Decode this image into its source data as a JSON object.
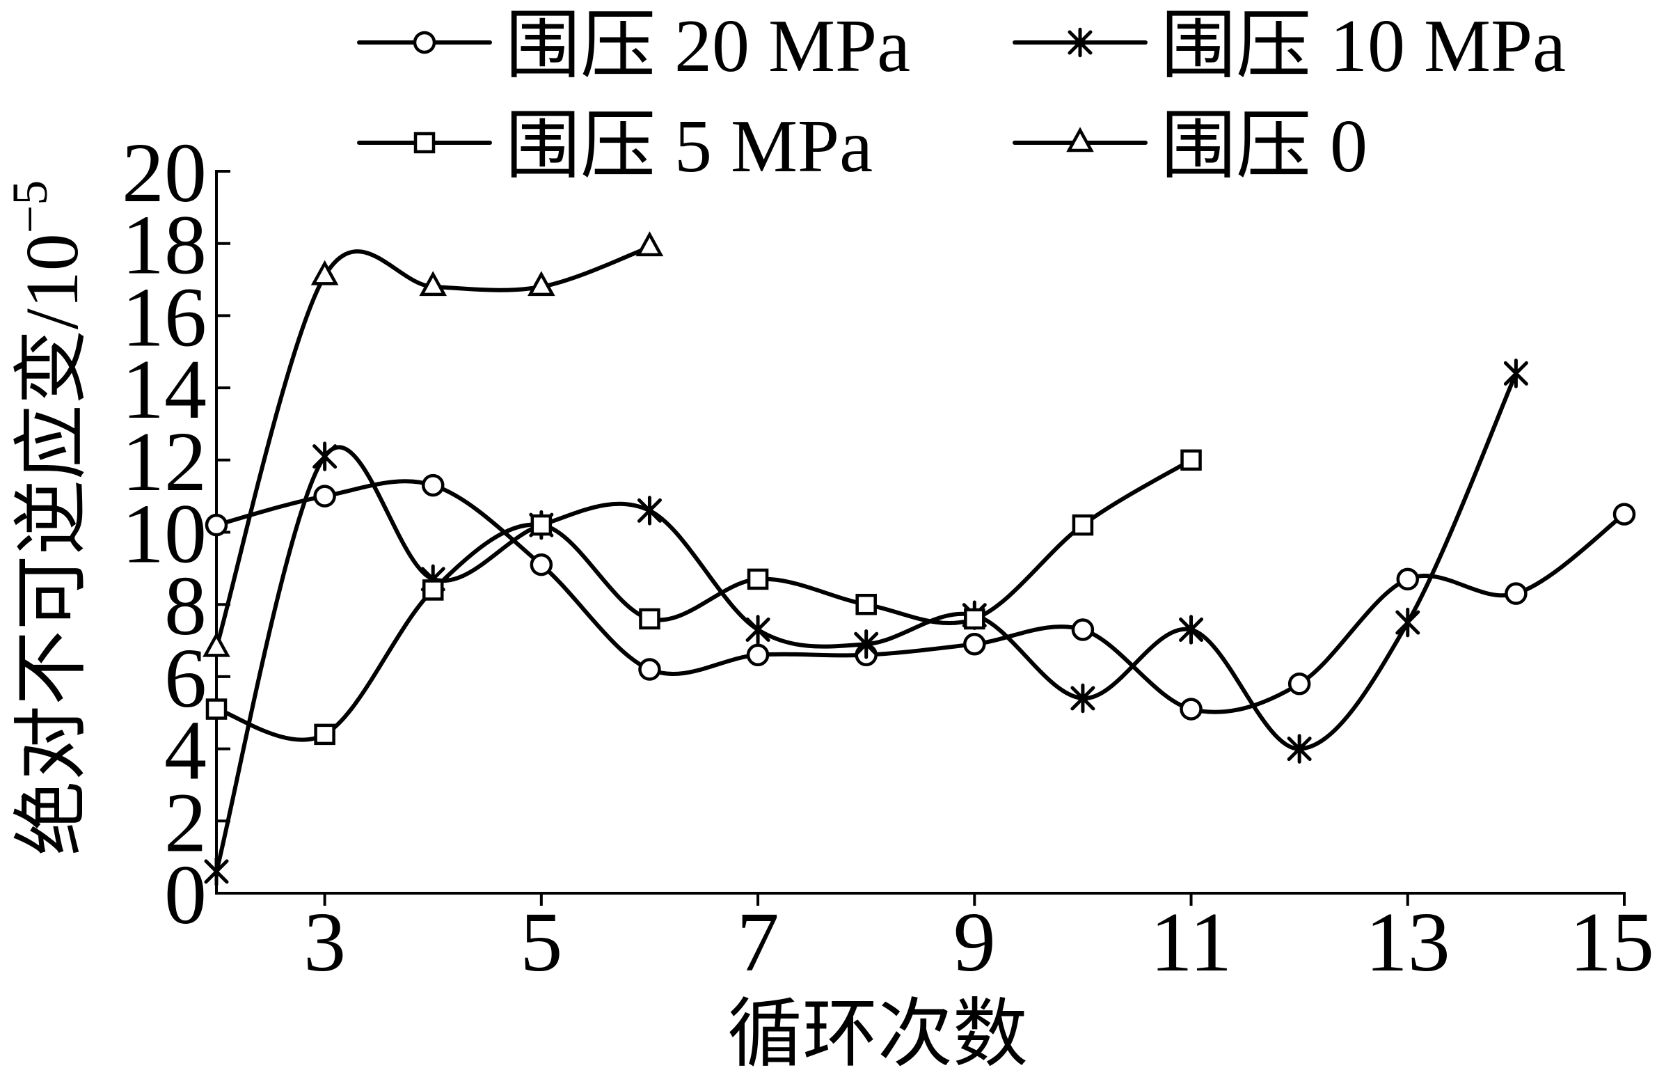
{
  "chart_data": {
    "type": "line",
    "smooth": true,
    "xlabel": "循环次数",
    "ylabel": "绝对不可逆应变/10",
    "ylabel_exponent": "−5",
    "xlim": [
      2,
      15
    ],
    "ylim": [
      0,
      20
    ],
    "xticks": [
      3,
      5,
      7,
      9,
      11,
      13,
      15
    ],
    "yticks": [
      0,
      2,
      4,
      6,
      8,
      10,
      12,
      14,
      16,
      18,
      20
    ],
    "grid": false,
    "legend_placement": "top",
    "line_color": "#000000",
    "marker_fill": "#ffffff",
    "series": [
      {
        "name": "围压 20 MPa",
        "marker": "circle",
        "x": [
          2,
          3,
          4,
          5,
          6,
          7,
          8,
          9,
          10,
          11,
          12,
          13,
          14,
          15
        ],
        "y": [
          10.2,
          11.0,
          11.3,
          9.1,
          6.2,
          6.6,
          6.6,
          6.9,
          7.3,
          5.1,
          5.8,
          8.7,
          8.3,
          10.5
        ]
      },
      {
        "name": "围压 10 MPa",
        "marker": "asterisk",
        "x": [
          2,
          3,
          4,
          5,
          6,
          7,
          8,
          9,
          10,
          11,
          12,
          13,
          14
        ],
        "y": [
          0.6,
          12.1,
          8.7,
          10.2,
          10.6,
          7.3,
          6.9,
          7.7,
          5.4,
          7.3,
          4.0,
          7.5,
          14.4
        ]
      },
      {
        "name": "围压 5 MPa",
        "marker": "square",
        "x": [
          2,
          3,
          4,
          5,
          6,
          7,
          8,
          9,
          10,
          11
        ],
        "y": [
          5.1,
          4.4,
          8.4,
          10.2,
          7.6,
          8.7,
          8.0,
          7.6,
          10.2,
          12.0
        ]
      },
      {
        "name": "围压 0",
        "marker": "triangle",
        "x": [
          2,
          3,
          4,
          5,
          6
        ],
        "y": [
          6.8,
          17.1,
          16.8,
          16.8,
          17.9
        ]
      }
    ]
  }
}
